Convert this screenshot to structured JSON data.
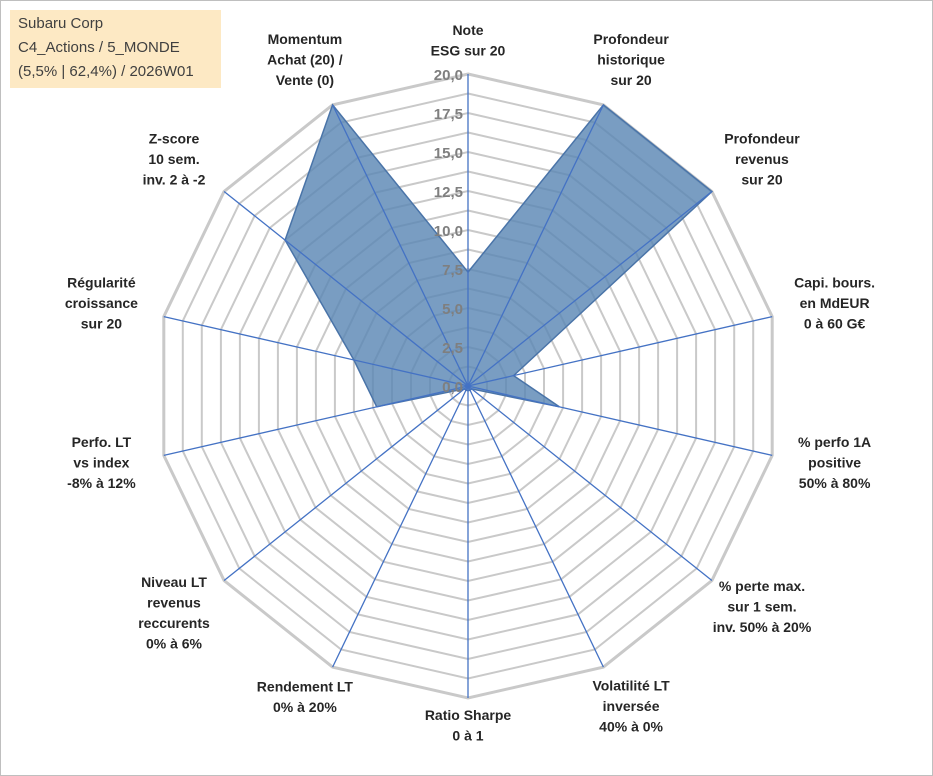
{
  "info": {
    "line1": "Subaru Corp",
    "line2": "C4_Actions / 5_MONDE",
    "line3": "(5,5% | 62,4%) / 2026W01"
  },
  "chart_data": {
    "type": "radar",
    "title": "",
    "rmin": 0,
    "rmax": 20,
    "ticks": [
      "0,0",
      "2,5",
      "5,0",
      "7,5",
      "10,0",
      "12,5",
      "15,0",
      "17,5",
      "20,0"
    ],
    "axes": [
      "Note\nESG sur 20",
      "Profondeur\nhistorique\nsur 20",
      "Profondeur\nrevenus\nsur 20",
      "Capi. bours.\nen MdEUR\n0 à 60 G€",
      "% perfo 1A\npositive\n50% à 80%",
      "% perte max.\nsur 1 sem.\ninv. 50% à 20%",
      "Volatilité LT\ninversée\n40% à 0%",
      "Ratio Sharpe\n0 à 1",
      "Rendement LT\n0% à 20%",
      "Niveau LT\nrevenus\nreccurents\n0% à 6%",
      "Perfo. LT\nvs index\n-8% à 12%",
      "Régularité\ncroissance\nsur 20",
      "Z-score\n10 sem.\ninv. 2 à -2",
      "Momentum\nAchat (20) /\nVente (0)"
    ],
    "series": [
      {
        "name": "Subaru Corp",
        "values": [
          7.3,
          20.0,
          20.0,
          3.0,
          6.0,
          0.3,
          0.3,
          0.3,
          0.3,
          0.3,
          6.0,
          7.5,
          15.0,
          20.0
        ],
        "fill": "#5b87b5",
        "stroke": "#4a74a8"
      }
    ],
    "grid_color": "#c9c9c9",
    "spoke_color": "#4472c4"
  }
}
